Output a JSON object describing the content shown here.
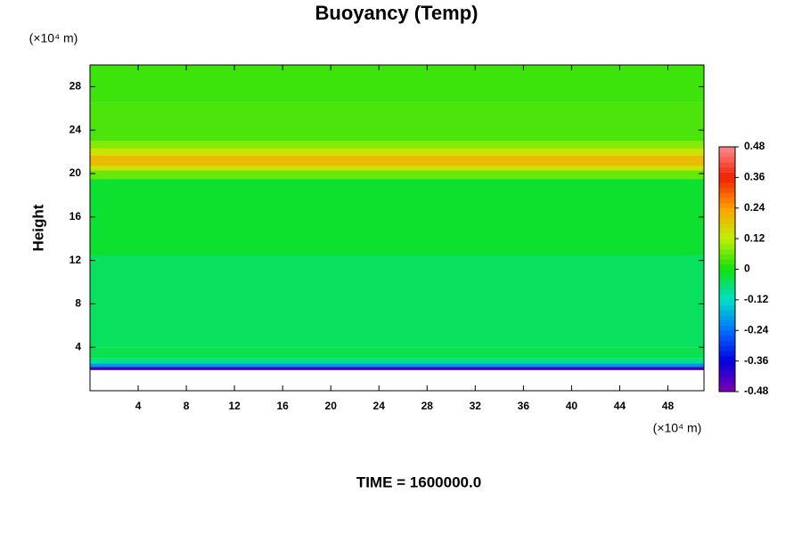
{
  "chart_data": {
    "type": "heatmap",
    "title": "Buoyancy (Temp)",
    "ylabel": "Height",
    "y_unit": "(×10⁴ m)",
    "x_unit": "(×10⁴ m)",
    "footer": "TIME = 1600000.0",
    "xlim": [
      0,
      51
    ],
    "xticks": [
      4,
      8,
      12,
      16,
      20,
      24,
      28,
      32,
      36,
      40,
      44,
      48
    ],
    "ylim": [
      0,
      30
    ],
    "yticks": [
      4,
      8,
      12,
      16,
      20,
      24,
      28
    ],
    "ybins": [
      1.9,
      2.2,
      2.5,
      3,
      4,
      12.5,
      19.5,
      20.3,
      20.7,
      21.7,
      22.3,
      23,
      26.5,
      30
    ],
    "values": [
      -0.42,
      -0.2,
      -0.08,
      -0.04,
      -0.05,
      -0.02,
      0.06,
      0.14,
      0.2,
      0.14,
      0.08,
      0.04,
      0.03
    ],
    "colorbar": {
      "ticks": [
        -0.48,
        -0.36,
        -0.24,
        -0.12,
        0,
        0.12,
        0.24,
        0.36,
        0.48
      ],
      "colors": [
        "#8000b0",
        "#0000e0",
        "#0070ff",
        "#00e0c8",
        "#10e010",
        "#c0f000",
        "#ffa000",
        "#f02000",
        "#ff8c8c"
      ]
    }
  }
}
